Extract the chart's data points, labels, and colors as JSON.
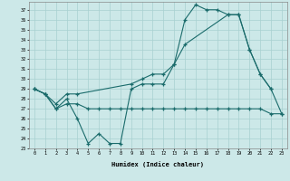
{
  "bg_color": "#cce8e8",
  "line_color": "#1a6b6b",
  "grid_color": "#a8d0d0",
  "xlabel": "Humidex (Indice chaleur)",
  "xlim": [
    -0.5,
    23.5
  ],
  "ylim": [
    23,
    37.8
  ],
  "xticks": [
    0,
    1,
    2,
    3,
    4,
    5,
    6,
    7,
    8,
    9,
    10,
    11,
    12,
    13,
    14,
    15,
    16,
    17,
    18,
    19,
    20,
    21,
    22,
    23
  ],
  "yticks": [
    23,
    24,
    25,
    26,
    27,
    28,
    29,
    30,
    31,
    32,
    33,
    34,
    35,
    36,
    37
  ],
  "s1_x": [
    0,
    1,
    2,
    3,
    4,
    5,
    6,
    7,
    8,
    9,
    10,
    11,
    12,
    13,
    14,
    15,
    16,
    17,
    18,
    19,
    20,
    21,
    22
  ],
  "s1_y": [
    29.0,
    28.5,
    27.0,
    28.0,
    26.0,
    23.5,
    24.5,
    23.5,
    23.5,
    29.0,
    29.5,
    29.5,
    29.5,
    31.5,
    36.0,
    37.5,
    37.0,
    37.0,
    36.5,
    36.5,
    33.0,
    30.5,
    29.0
  ],
  "s2_x": [
    0,
    1,
    2,
    3,
    4,
    9,
    10,
    11,
    12,
    13,
    14,
    18,
    19,
    20,
    21,
    22,
    23
  ],
  "s2_y": [
    29.0,
    28.5,
    27.5,
    28.5,
    28.5,
    29.5,
    30.0,
    30.5,
    30.5,
    31.5,
    33.5,
    36.5,
    36.5,
    33.0,
    30.5,
    29.0,
    26.5
  ],
  "s3_x": [
    0,
    1,
    2,
    3,
    4,
    5,
    6,
    7,
    8,
    9,
    10,
    11,
    12,
    13,
    14,
    15,
    16,
    17,
    18,
    19,
    20,
    21,
    22,
    23
  ],
  "s3_y": [
    29.0,
    28.5,
    27.0,
    27.5,
    27.5,
    27.0,
    27.0,
    27.0,
    27.0,
    27.0,
    27.0,
    27.0,
    27.0,
    27.0,
    27.0,
    27.0,
    27.0,
    27.0,
    27.0,
    27.0,
    27.0,
    27.0,
    26.5,
    26.5
  ]
}
